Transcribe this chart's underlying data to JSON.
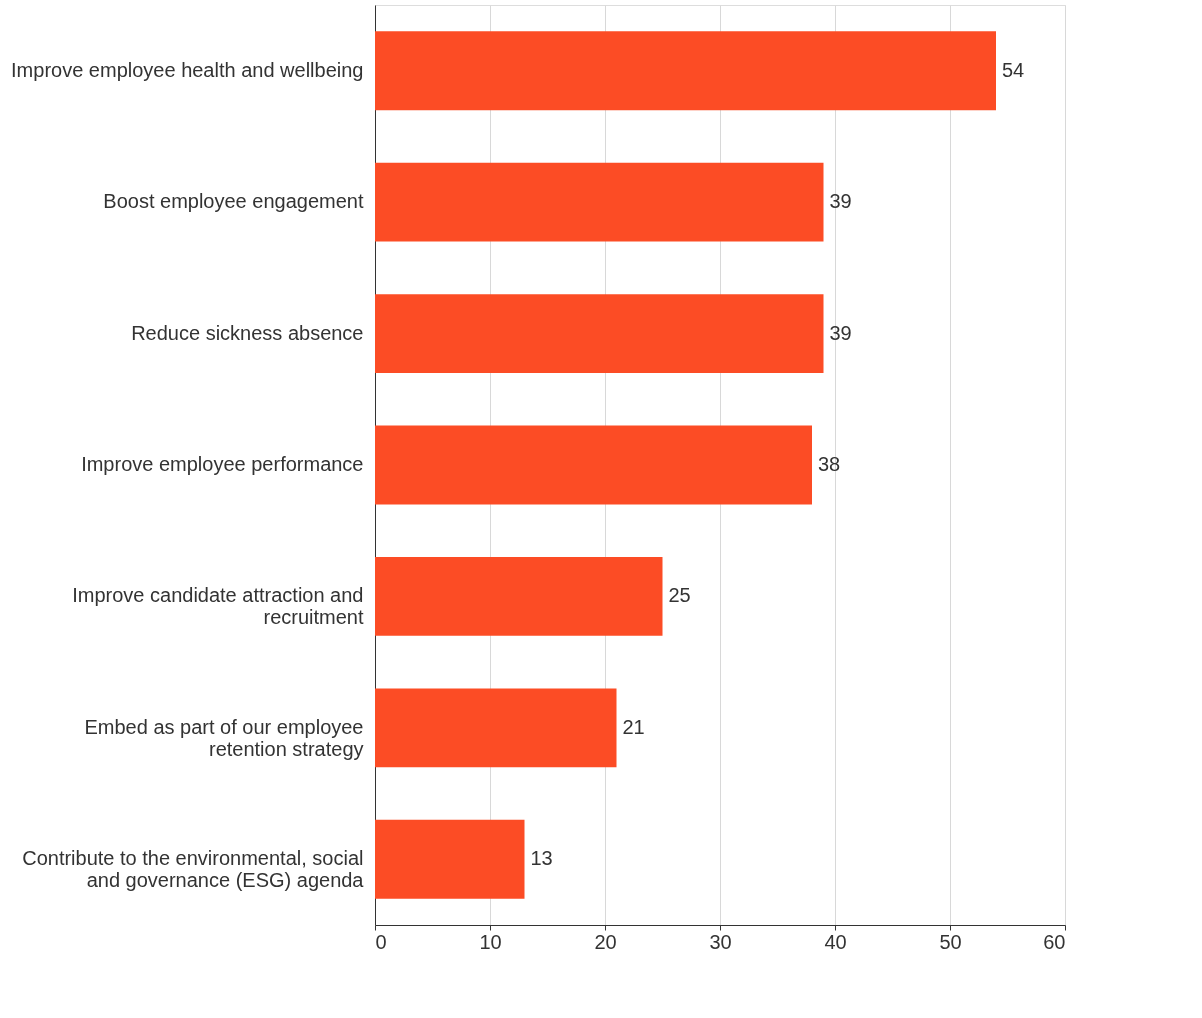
{
  "chart_data": {
    "type": "bar",
    "orientation": "horizontal",
    "categories": [
      "Improve employee health and wellbeing",
      "Boost employee engagement",
      "Reduce sickness absence",
      "Improve employee performance",
      "Improve candidate attraction and\nrecruitment",
      "Embed as part of our employee\nretention strategy",
      "Contribute to the environmental, social\nand governance (ESG) agenda"
    ],
    "values": [
      54,
      39,
      39,
      38,
      25,
      21,
      13
    ],
    "color": "#fc4c25",
    "xlim": [
      0,
      60
    ],
    "xticks": [
      0,
      10,
      20,
      30,
      40,
      50,
      60
    ],
    "grid": "x",
    "data_labels": true
  }
}
